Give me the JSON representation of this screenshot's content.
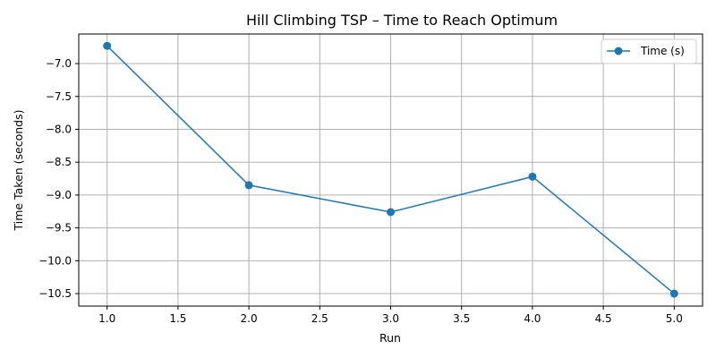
{
  "chart_data": {
    "type": "line",
    "title": "Hill Climbing TSP – Time to Reach Optimum",
    "xlabel": "Run",
    "ylabel": "Time Taken (seconds)",
    "x": [
      1,
      2,
      3,
      4,
      5
    ],
    "series": [
      {
        "name": "Time (s)",
        "values": [
          -6.73,
          -8.85,
          -9.26,
          -8.72,
          -10.5
        ],
        "color": "#1f77b4",
        "marker": "circle"
      }
    ],
    "xlim": [
      0.8,
      5.2
    ],
    "ylim": [
      -10.69,
      -6.55
    ],
    "xticks": [
      1.0,
      1.5,
      2.0,
      2.5,
      3.0,
      3.5,
      4.0,
      4.5,
      5.0
    ],
    "xtick_labels": [
      "1.0",
      "1.5",
      "2.0",
      "2.5",
      "3.0",
      "3.5",
      "4.0",
      "4.5",
      "5.0"
    ],
    "yticks": [
      -7.0,
      -7.5,
      -8.0,
      -8.5,
      -9.0,
      -9.5,
      -10.0,
      -10.5
    ],
    "ytick_labels": [
      "−7.0",
      "−7.5",
      "−8.0",
      "−8.5",
      "−9.0",
      "−9.5",
      "−10.0",
      "−10.5"
    ],
    "grid": true,
    "legend": "top-right"
  }
}
